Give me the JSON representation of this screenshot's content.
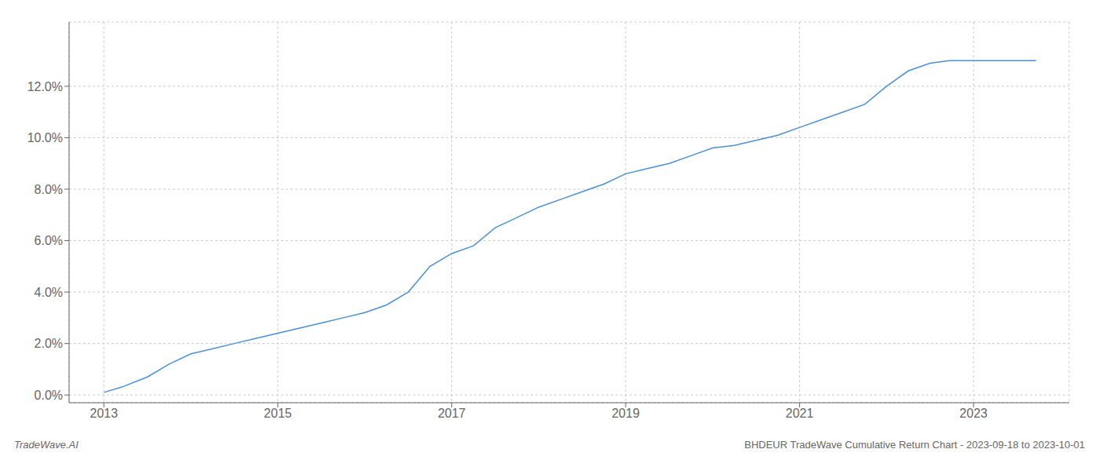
{
  "chart_data": {
    "type": "line",
    "x": [
      2013.0,
      2013.2,
      2013.5,
      2013.75,
      2014.0,
      2014.25,
      2014.5,
      2014.75,
      2015.0,
      2015.25,
      2015.5,
      2015.75,
      2016.0,
      2016.25,
      2016.5,
      2016.75,
      2017.0,
      2017.25,
      2017.5,
      2017.75,
      2018.0,
      2018.25,
      2018.5,
      2018.75,
      2019.0,
      2019.25,
      2019.5,
      2019.75,
      2020.0,
      2020.25,
      2020.5,
      2020.75,
      2021.0,
      2021.25,
      2021.5,
      2021.75,
      2022.0,
      2022.25,
      2022.5,
      2022.72,
      2023.0,
      2023.72
    ],
    "values": [
      0.001,
      0.003,
      0.007,
      0.012,
      0.016,
      0.018,
      0.02,
      0.022,
      0.024,
      0.026,
      0.028,
      0.03,
      0.032,
      0.035,
      0.04,
      0.05,
      0.055,
      0.058,
      0.065,
      0.069,
      0.073,
      0.076,
      0.079,
      0.082,
      0.086,
      0.088,
      0.09,
      0.093,
      0.096,
      0.097,
      0.099,
      0.101,
      0.104,
      0.107,
      0.11,
      0.113,
      0.12,
      0.126,
      0.129,
      0.13,
      0.13,
      0.13
    ],
    "color": "#4a90d9",
    "xlim": [
      2012.6,
      2024.1
    ],
    "ylim": [
      -0.003,
      0.145
    ],
    "xticks": [
      2013,
      2015,
      2017,
      2019,
      2021,
      2023
    ],
    "yticks": [
      {
        "value": 0.0,
        "label": "0.0%"
      },
      {
        "value": 0.02,
        "label": "2.0%"
      },
      {
        "value": 0.04,
        "label": "4.0%"
      },
      {
        "value": 0.06,
        "label": "6.0%"
      },
      {
        "value": 0.08,
        "label": "8.0%"
      },
      {
        "value": 0.1,
        "label": "10.0%"
      },
      {
        "value": 0.12,
        "label": "12.0%"
      }
    ],
    "grid": true,
    "annotations": [
      "TradeWave.AI",
      "BHDEUR TradeWave Cumulative Return Chart - 2023-09-18 to 2023-10-01"
    ]
  }
}
